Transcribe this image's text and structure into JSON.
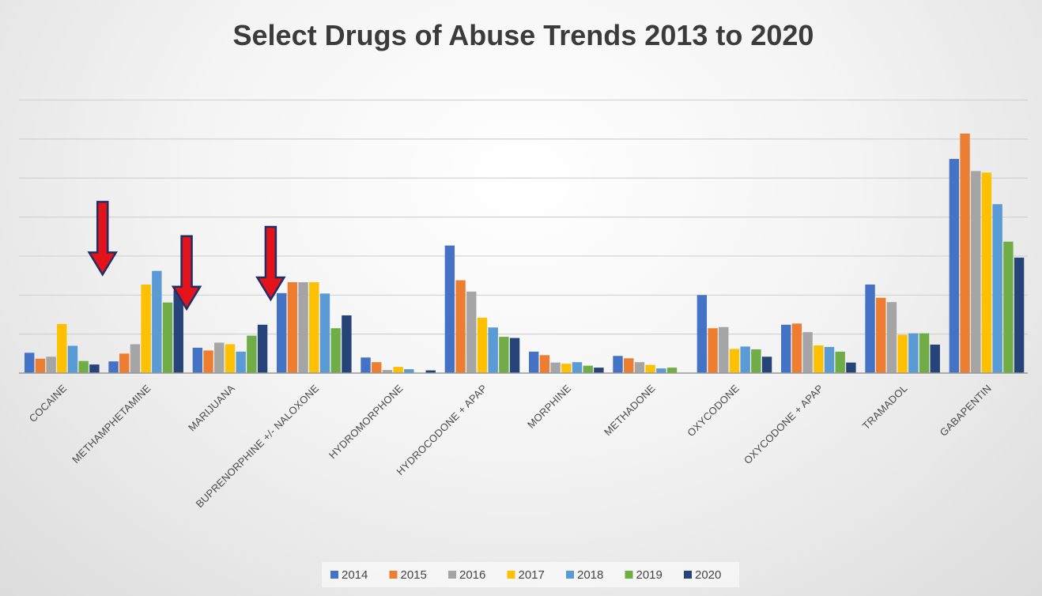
{
  "chart_data": {
    "type": "bar",
    "title": "Select Drugs of Abuse Trends 2013 to 2020",
    "xlabel": "",
    "ylabel": "",
    "ylim": [
      0,
      7.7
    ],
    "gridlines": true,
    "legend_position": "bottom",
    "categories": [
      "COCAINE",
      "METHAMPHETAMINE",
      "MARIJUANA",
      "BUPRENORPHINE +/- NALOXONE",
      "HYDROMORPHONE",
      "HYDROCODONE + APAP",
      "MORPHINE",
      "METHADONE",
      "OXYCODONE",
      "OXYCODONE + APAP",
      "TRAMADOL",
      "GABAPENTIN"
    ],
    "series": [
      {
        "name": "2014",
        "color": "#4472C4",
        "values": [
          0.52,
          0.3,
          0.65,
          2.05,
          0.4,
          3.27,
          0.55,
          0.44,
          2.0,
          1.24,
          2.27,
          5.49
        ]
      },
      {
        "name": "2015",
        "color": "#ED7D31",
        "values": [
          0.37,
          0.5,
          0.58,
          2.33,
          0.28,
          2.38,
          0.46,
          0.38,
          1.15,
          1.27,
          1.93,
          6.14
        ]
      },
      {
        "name": "2016",
        "color": "#A5A5A5",
        "values": [
          0.42,
          0.74,
          0.78,
          2.33,
          0.08,
          2.09,
          0.27,
          0.28,
          1.18,
          1.05,
          1.82,
          5.18
        ]
      },
      {
        "name": "2017",
        "color": "#FFC000",
        "values": [
          1.26,
          2.27,
          0.74,
          2.33,
          0.16,
          1.42,
          0.24,
          0.21,
          0.62,
          0.71,
          0.98,
          5.14
        ]
      },
      {
        "name": "2018",
        "color": "#5B9BD5",
        "values": [
          0.7,
          2.62,
          0.55,
          2.04,
          0.1,
          1.17,
          0.28,
          0.12,
          0.68,
          0.67,
          1.02,
          4.33
        ]
      },
      {
        "name": "2019",
        "color": "#70AD47",
        "values": [
          0.31,
          1.81,
          0.96,
          1.15,
          0.01,
          0.93,
          0.19,
          0.14,
          0.61,
          0.55,
          1.02,
          3.37
        ]
      },
      {
        "name": "2020",
        "color": "#264478",
        "values": [
          0.22,
          2.12,
          1.24,
          1.48,
          0.07,
          0.9,
          0.14,
          0.0,
          0.42,
          0.27,
          0.73,
          2.96
        ]
      }
    ],
    "annotations": [
      {
        "type": "down-arrow",
        "color": "#E3131C",
        "category": "METHAMPHETAMINE",
        "series": "2020"
      },
      {
        "type": "down-arrow",
        "color": "#E3131C",
        "category": "MARIJUANA",
        "series": "2020"
      },
      {
        "type": "down-arrow",
        "color": "#E3131C",
        "category": "BUPRENORPHINE +/- NALOXONE",
        "series": "2020"
      }
    ]
  }
}
